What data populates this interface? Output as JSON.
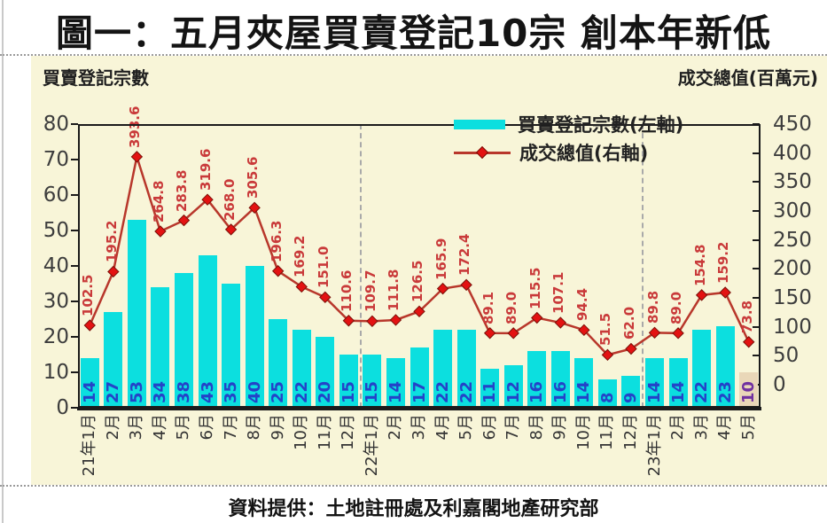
{
  "page": {
    "title": "圖一：五月夾屋買賣登記10宗 創本年新低",
    "footer": "資料提供：土地註冊處及利嘉閣地產研究部"
  },
  "axis_titles": {
    "left": "買賣登記宗數",
    "right": "成交總值(百萬元)"
  },
  "legend": {
    "bar_label": "買賣登記宗數(左軸)",
    "line_label": "成交總值(右軸)"
  },
  "chart_data": {
    "type": "bar",
    "title": "圖一：五月夾屋買賣登記10宗 創本年新低",
    "categories": [
      "21年1月",
      "2月",
      "3月",
      "4月",
      "5月",
      "6月",
      "7月",
      "8月",
      "9月",
      "10月",
      "11月",
      "12月",
      "22年1月",
      "2月",
      "3月",
      "4月",
      "5月",
      "6月",
      "7月",
      "8月",
      "9月",
      "10月",
      "11月",
      "12月",
      "23年1月",
      "2月",
      "3月",
      "4月",
      "5月"
    ],
    "series": [
      {
        "name": "買賣登記宗數(左軸)",
        "type": "bar",
        "axis": "left",
        "values": [
          14,
          27,
          53,
          34,
          38,
          43,
          35,
          40,
          25,
          22,
          20,
          15,
          15,
          14,
          17,
          22,
          22,
          11,
          12,
          16,
          16,
          14,
          8,
          9,
          14,
          14,
          22,
          23,
          10
        ]
      },
      {
        "name": "成交總值(右軸)",
        "type": "line",
        "axis": "right",
        "values": [
          102.5,
          195.2,
          393.6,
          264.8,
          283.8,
          319.6,
          268.0,
          305.6,
          196.3,
          169.2,
          151.0,
          110.6,
          109.7,
          111.8,
          126.5,
          165.9,
          172.4,
          89.1,
          89.0,
          115.5,
          107.1,
          94.4,
          51.5,
          62.0,
          89.8,
          89.0,
          154.8,
          159.2,
          73.8
        ]
      }
    ],
    "left_axis": {
      "label": "買賣登記宗數",
      "ticks": [
        0,
        10,
        20,
        30,
        40,
        50,
        60,
        70,
        80
      ],
      "range": [
        0,
        80
      ]
    },
    "right_axis": {
      "label": "成交總值(百萬元)",
      "ticks": [
        0,
        50,
        100,
        150,
        200,
        250,
        300,
        350,
        400,
        450
      ],
      "range": [
        0,
        450
      ]
    },
    "year_separator_after": [
      11,
      23
    ],
    "highlight_last_bar": true,
    "legend_position": "top-right-inside",
    "grid": false
  },
  "colors": {
    "panel_bg": "#f8f5d8",
    "bar": "#0cdfdf",
    "bar_highlight": "#e9d7b8",
    "bar_value_label": "#2443c8",
    "bar_value_label_highlight": "#7030a0",
    "line": "#b8372b",
    "marker_fill": "#e31212",
    "marker_stroke": "#7a1008",
    "line_value_label": "#c93a3a"
  }
}
